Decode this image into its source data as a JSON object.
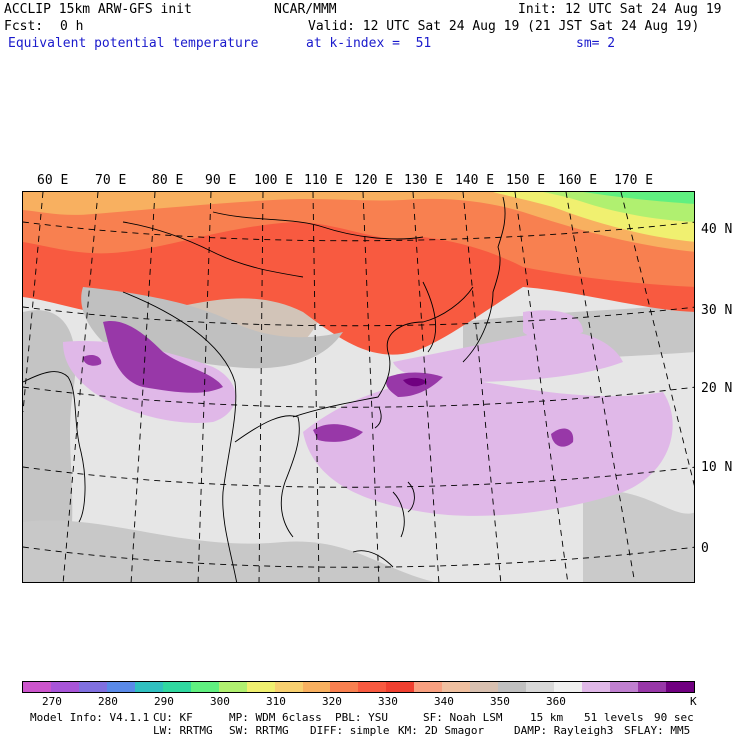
{
  "header": {
    "model": "ACCLIP 15km ARW-GFS init",
    "fcst_label": "Fcst:",
    "fcst_value": "0 h",
    "org": "NCAR/MMM",
    "init": "Init: 12 UTC Sat 24 Aug 19",
    "valid": "Valid: 12 UTC Sat 24 Aug 19 (21 JST Sat 24 Aug 19)",
    "field": "Equivalent potential temperature",
    "level": "at k-index =  51",
    "smooth": "sm= 2"
  },
  "map": {
    "lon_labels": [
      "60 E",
      "70 E",
      "80 E",
      "90 E",
      "100 E",
      "110 E",
      "120 E",
      "130 E",
      "140 E",
      "150 E",
      "160 E",
      "170 E"
    ],
    "lat_labels": [
      "40 N",
      "30 N",
      "20 N",
      "10 N",
      "0"
    ]
  },
  "colorbar": {
    "colors": [
      "#cc55cc",
      "#a855d8",
      "#8070e0",
      "#5a8ae8",
      "#30c0c0",
      "#30d8a0",
      "#60f080",
      "#b0f070",
      "#f0f070",
      "#f8d070",
      "#f8b060",
      "#f88050",
      "#f85a40",
      "#f04030",
      "#f8a080",
      "#f0c0a0",
      "#d8c0b0",
      "#c0c0c0",
      "#d8d8d8",
      "#f0f0f0",
      "#e0b8e8",
      "#c080d0",
      "#9838a8",
      "#700080"
    ],
    "labels": [
      "270",
      "280",
      "290",
      "300",
      "310",
      "320",
      "330",
      "340",
      "350",
      "360"
    ],
    "unit": "K"
  },
  "footer": {
    "line1": [
      "Model Info: V4.1.1",
      "CU: KF",
      "MP: WDM 6class",
      "PBL: YSU",
      "SF: Noah LSM",
      "15 km",
      "51 levels",
      "90 sec"
    ],
    "line2": [
      "LW: RRTMG",
      "SW: RRTMG",
      "DIFF: simple",
      "KM: 2D Smagor",
      "DAMP: Rayleigh3",
      "SFLAY: MM5"
    ]
  }
}
